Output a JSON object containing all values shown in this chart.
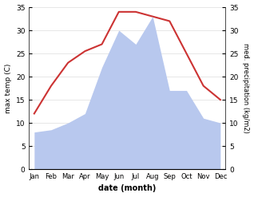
{
  "months": [
    "Jan",
    "Feb",
    "Mar",
    "Apr",
    "May",
    "Jun",
    "Jul",
    "Aug",
    "Sep",
    "Oct",
    "Nov",
    "Dec"
  ],
  "temperature": [
    12,
    18,
    23,
    25.5,
    27,
    34,
    34,
    33,
    32,
    25,
    18,
    15
  ],
  "precipitation": [
    8,
    8.5,
    10,
    12,
    22,
    30,
    27,
    33,
    17,
    17,
    11,
    10
  ],
  "temp_color": "#cc3333",
  "precip_color": "#b8c8ee",
  "ylim_left": [
    0,
    35
  ],
  "ylim_right": [
    0,
    35
  ],
  "yticks": [
    0,
    5,
    10,
    15,
    20,
    25,
    30,
    35
  ],
  "ylabel_left": "max temp (C)",
  "ylabel_right": "med. precipitation (kg/m2)",
  "xlabel": "date (month)",
  "background_color": "#ffffff",
  "grid_color": "#dddddd",
  "right_tick_color": "#555555"
}
